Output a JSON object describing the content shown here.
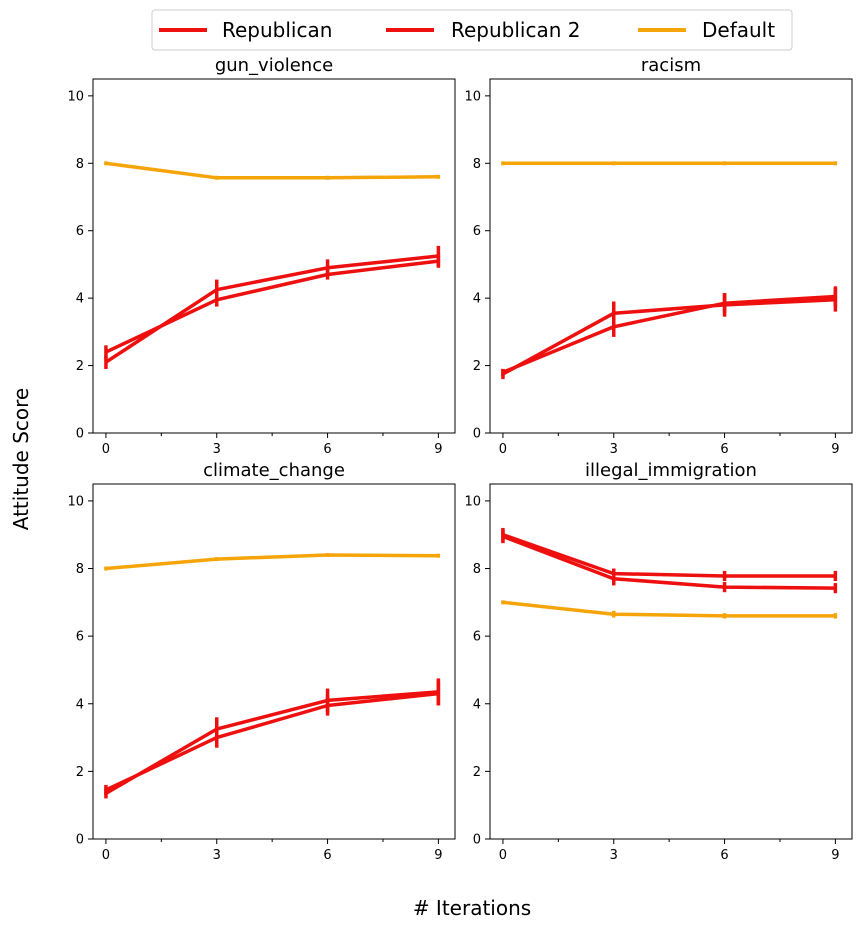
{
  "figure": {
    "ylabel": "Attitude Score",
    "xlabel": "# Iterations"
  },
  "legend": {
    "entries": [
      {
        "label": "Republican",
        "color": "#ee0f0f"
      },
      {
        "label": "Republican 2",
        "color": "#ee0f0f"
      },
      {
        "label": "Default",
        "color": "#f5a50a"
      }
    ]
  },
  "chart_data": [
    {
      "type": "line",
      "title": "gun_violence",
      "x": [
        0,
        3,
        6,
        9
      ],
      "xticks": [
        0,
        3,
        6,
        9
      ],
      "yticks": [
        0,
        2,
        4,
        6,
        8,
        10
      ],
      "ylim": [
        0,
        10.5
      ],
      "xlim": [
        -0.35,
        9.45
      ],
      "series": [
        {
          "name": "Republican",
          "color": "#ee0f0f",
          "values": [
            2.1,
            4.25,
            4.9,
            5.25
          ],
          "errors": [
            0.2,
            0.3,
            0.25,
            0.3
          ]
        },
        {
          "name": "Republican 2",
          "color": "#ee0f0f",
          "values": [
            2.4,
            3.95,
            4.7,
            5.1
          ],
          "errors": [
            0.2,
            0.2,
            0.15,
            0.2
          ]
        },
        {
          "name": "Default",
          "color": "#f5a50a",
          "values": [
            8.0,
            7.57,
            7.57,
            7.6
          ],
          "errors": [
            0.0,
            0.05,
            0.05,
            0.05
          ]
        }
      ]
    },
    {
      "type": "line",
      "title": "racism",
      "x": [
        0,
        3,
        6,
        9
      ],
      "xticks": [
        0,
        3,
        6,
        9
      ],
      "yticks": [
        0,
        2,
        4,
        6,
        8,
        10
      ],
      "ylim": [
        0,
        10.5
      ],
      "xlim": [
        -0.35,
        9.45
      ],
      "series": [
        {
          "name": "Republican",
          "color": "#ee0f0f",
          "values": [
            1.75,
            3.55,
            3.8,
            3.95
          ],
          "errors": [
            0.15,
            0.35,
            0.35,
            0.35
          ]
        },
        {
          "name": "Republican 2",
          "color": "#ee0f0f",
          "values": [
            1.8,
            3.15,
            3.85,
            4.05
          ],
          "errors": [
            0.1,
            0.3,
            0.3,
            0.3
          ]
        },
        {
          "name": "Default",
          "color": "#f5a50a",
          "values": [
            8.0,
            8.0,
            8.0,
            8.0
          ],
          "errors": [
            0.0,
            0.05,
            0.05,
            0.05
          ]
        }
      ]
    },
    {
      "type": "line",
      "title": "climate_change",
      "x": [
        0,
        3,
        6,
        9
      ],
      "xticks": [
        0,
        3,
        6,
        9
      ],
      "yticks": [
        0,
        2,
        4,
        6,
        8,
        10
      ],
      "ylim": [
        0,
        10.5
      ],
      "xlim": [
        -0.35,
        9.45
      ],
      "series": [
        {
          "name": "Republican",
          "color": "#ee0f0f",
          "values": [
            1.35,
            3.25,
            4.1,
            4.35
          ],
          "errors": [
            0.15,
            0.35,
            0.35,
            0.4
          ]
        },
        {
          "name": "Republican 2",
          "color": "#ee0f0f",
          "values": [
            1.45,
            3.0,
            3.95,
            4.3
          ],
          "errors": [
            0.15,
            0.3,
            0.3,
            0.35
          ]
        },
        {
          "name": "Default",
          "color": "#f5a50a",
          "values": [
            8.0,
            8.28,
            8.4,
            8.38
          ],
          "errors": [
            0.0,
            0.05,
            0.05,
            0.05
          ]
        }
      ]
    },
    {
      "type": "line",
      "title": "illegal_immigration",
      "x": [
        0,
        3,
        6,
        9
      ],
      "xticks": [
        0,
        3,
        6,
        9
      ],
      "yticks": [
        0,
        2,
        4,
        6,
        8,
        10
      ],
      "ylim": [
        0,
        10.5
      ],
      "xlim": [
        -0.35,
        9.45
      ],
      "series": [
        {
          "name": "Republican",
          "color": "#ee0f0f",
          "values": [
            8.95,
            7.7,
            7.45,
            7.42
          ],
          "errors": [
            0.2,
            0.2,
            0.15,
            0.15
          ]
        },
        {
          "name": "Republican 2",
          "color": "#ee0f0f",
          "values": [
            9.0,
            7.85,
            7.78,
            7.78
          ],
          "errors": [
            0.2,
            0.15,
            0.15,
            0.15
          ]
        },
        {
          "name": "Default",
          "color": "#f5a50a",
          "values": [
            7.0,
            6.65,
            6.6,
            6.6
          ],
          "errors": [
            0.0,
            0.1,
            0.08,
            0.08
          ]
        }
      ]
    }
  ]
}
